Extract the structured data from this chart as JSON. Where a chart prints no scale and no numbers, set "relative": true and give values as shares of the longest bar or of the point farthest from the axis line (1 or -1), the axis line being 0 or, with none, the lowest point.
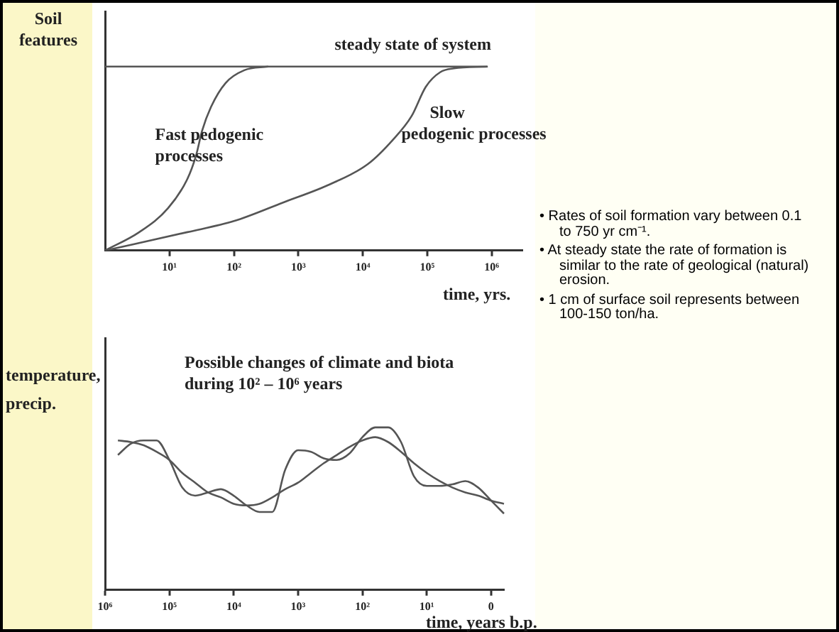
{
  "chart_data": [
    {
      "type": "line",
      "ylabel": "Soil features",
      "xlabel": "time, yrs.",
      "relative": true,
      "log": "x",
      "xlim": [
        1,
        3000000
      ],
      "xticks": [
        {
          "value": 10,
          "label": "10¹"
        },
        {
          "value": 100,
          "label": "10²"
        },
        {
          "value": 1000,
          "label": "10³"
        },
        {
          "value": 10000,
          "label": "10⁴"
        },
        {
          "value": 100000,
          "label": "10⁵"
        },
        {
          "value": 1000000,
          "label": "10⁶"
        }
      ],
      "grid": false,
      "legend": false,
      "marker": "none",
      "series": [
        {
          "name": "steady state of system",
          "color": "#555555",
          "x": [
            1,
            850000
          ],
          "values": [
            1,
            1
          ]
        },
        {
          "name": "Fast pedogenic processes",
          "color": "#555555",
          "x": [
            1,
            3.4,
            9.5,
            19,
            26,
            32,
            44,
            74,
            145,
            340
          ],
          "values": [
            0,
            0.1,
            0.23,
            0.39,
            0.52,
            0.65,
            0.78,
            0.91,
            0.98,
            1
          ]
        },
        {
          "name": "Slow pedogenic processes",
          "color": "#555555",
          "x": [
            1,
            19,
            100,
            570,
            3100,
            12000,
            29000,
            57000,
            95000,
            160000,
            260000,
            870000
          ],
          "values": [
            0,
            0.1,
            0.16,
            0.26,
            0.36,
            0.47,
            0.6,
            0.73,
            0.89,
            0.97,
            0.99,
            1
          ]
        }
      ]
    },
    {
      "type": "line",
      "title": "Possible changes of climate and biota during 10² – 10⁶ years",
      "ylabel": "temperature, precip.",
      "xlabel": "time, years b.p.",
      "relative": true,
      "grid": false,
      "legend": false,
      "marker": "none",
      "categories": [
        "10⁶",
        null,
        null,
        null,
        null,
        "10⁵",
        null,
        null,
        null,
        null,
        "10⁴",
        null,
        null,
        null,
        null,
        "10³",
        null,
        null,
        null,
        null,
        "10²",
        null,
        null,
        null,
        null,
        "10¹",
        null,
        null,
        null,
        null,
        "0",
        null
      ],
      "series": [
        {
          "color": "#555555",
          "values": [
            null,
            0.83,
            0.9,
            0.92,
            0.92,
            0.8,
            0.63,
            0.58,
            0.6,
            0.62,
            0.58,
            0.52,
            0.48,
            0.48,
            0.74,
            0.86,
            0.85,
            0.81,
            0.8,
            0.84,
            0.94,
            1,
            1,
            0.91,
            0.7,
            0.64,
            0.64,
            0.65,
            0.67,
            0.63,
            0.55,
            0.47
          ]
        },
        {
          "color": "#555555",
          "values": [
            null,
            0.92,
            0.91,
            0.89,
            0.85,
            0.8,
            0.72,
            0.66,
            0.6,
            0.57,
            0.53,
            0.52,
            0.53,
            0.57,
            0.62,
            0.66,
            0.72,
            0.78,
            0.83,
            0.88,
            0.92,
            0.94,
            0.91,
            0.85,
            0.78,
            0.72,
            0.67,
            0.63,
            0.6,
            0.58,
            0.55,
            0.53
          ]
        }
      ]
    },
    {
      "type": "other",
      "annotations": [
        "• Rates of soil formation vary between 0.1 to 750 yr cm⁻¹.",
        "• At steady state the rate of formation is similar to the rate of geological (natural) erosion.",
        "• 1 cm of surface soil represents between 100-150 ton/ha."
      ]
    }
  ]
}
